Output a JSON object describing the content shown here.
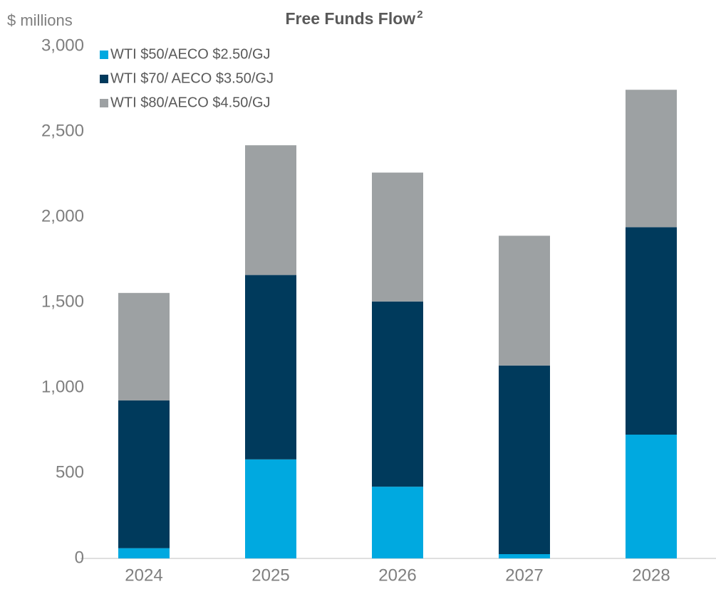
{
  "chart_data": {
    "type": "stacked_bar",
    "title": "Free Funds Flow",
    "title_superscript": "2",
    "y_label": "$ millions",
    "categories": [
      "2024",
      "2025",
      "2026",
      "2027",
      "2028"
    ],
    "series": [
      {
        "name": "WTI $50/AECO $2.50/GJ",
        "color": "#00a9e0",
        "values": [
          60,
          580,
          420,
          25,
          725
        ]
      },
      {
        "name": "WTI $70/ AECO $3.50/GJ",
        "color": "#003a5c",
        "values": [
          865,
          1080,
          1085,
          1105,
          1215
        ]
      },
      {
        "name": "WTI $80/AECO $4.50/GJ",
        "color": "#9da1a3",
        "values": [
          630,
          760,
          755,
          760,
          805
        ]
      }
    ],
    "ylim": [
      0,
      3000
    ],
    "yticks": [
      0,
      500,
      {
        "value": 1000,
        "label": "1,000"
      },
      {
        "value": 1500,
        "label": "1,500"
      },
      {
        "value": 2000,
        "label": "2,000"
      },
      {
        "value": 2500,
        "label": "2,500"
      },
      {
        "value": 3000,
        "label": "3,000"
      }
    ],
    "legend": "top-left"
  }
}
